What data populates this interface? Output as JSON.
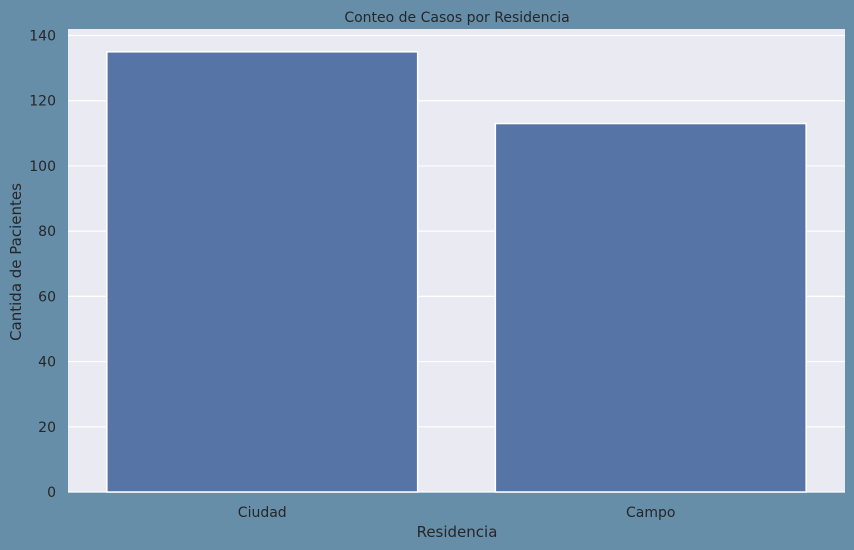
{
  "colors": {
    "figure_background": "#668ea9",
    "plot_background": "#eaeaf2",
    "bar_fill": "#5674a5",
    "grid": "#ffffff",
    "text": "#262626"
  },
  "chart_data": {
    "type": "bar",
    "title": "Conteo de Casos por Residencia",
    "xlabel": "Residencia",
    "ylabel": "Cantida de Pacientes",
    "categories": [
      "Ciudad",
      "Campo"
    ],
    "values": [
      135,
      113
    ],
    "ylim": [
      0,
      142
    ],
    "yticks": [
      0,
      20,
      40,
      60,
      80,
      100,
      120,
      140
    ],
    "grid": true,
    "legend": "none"
  }
}
